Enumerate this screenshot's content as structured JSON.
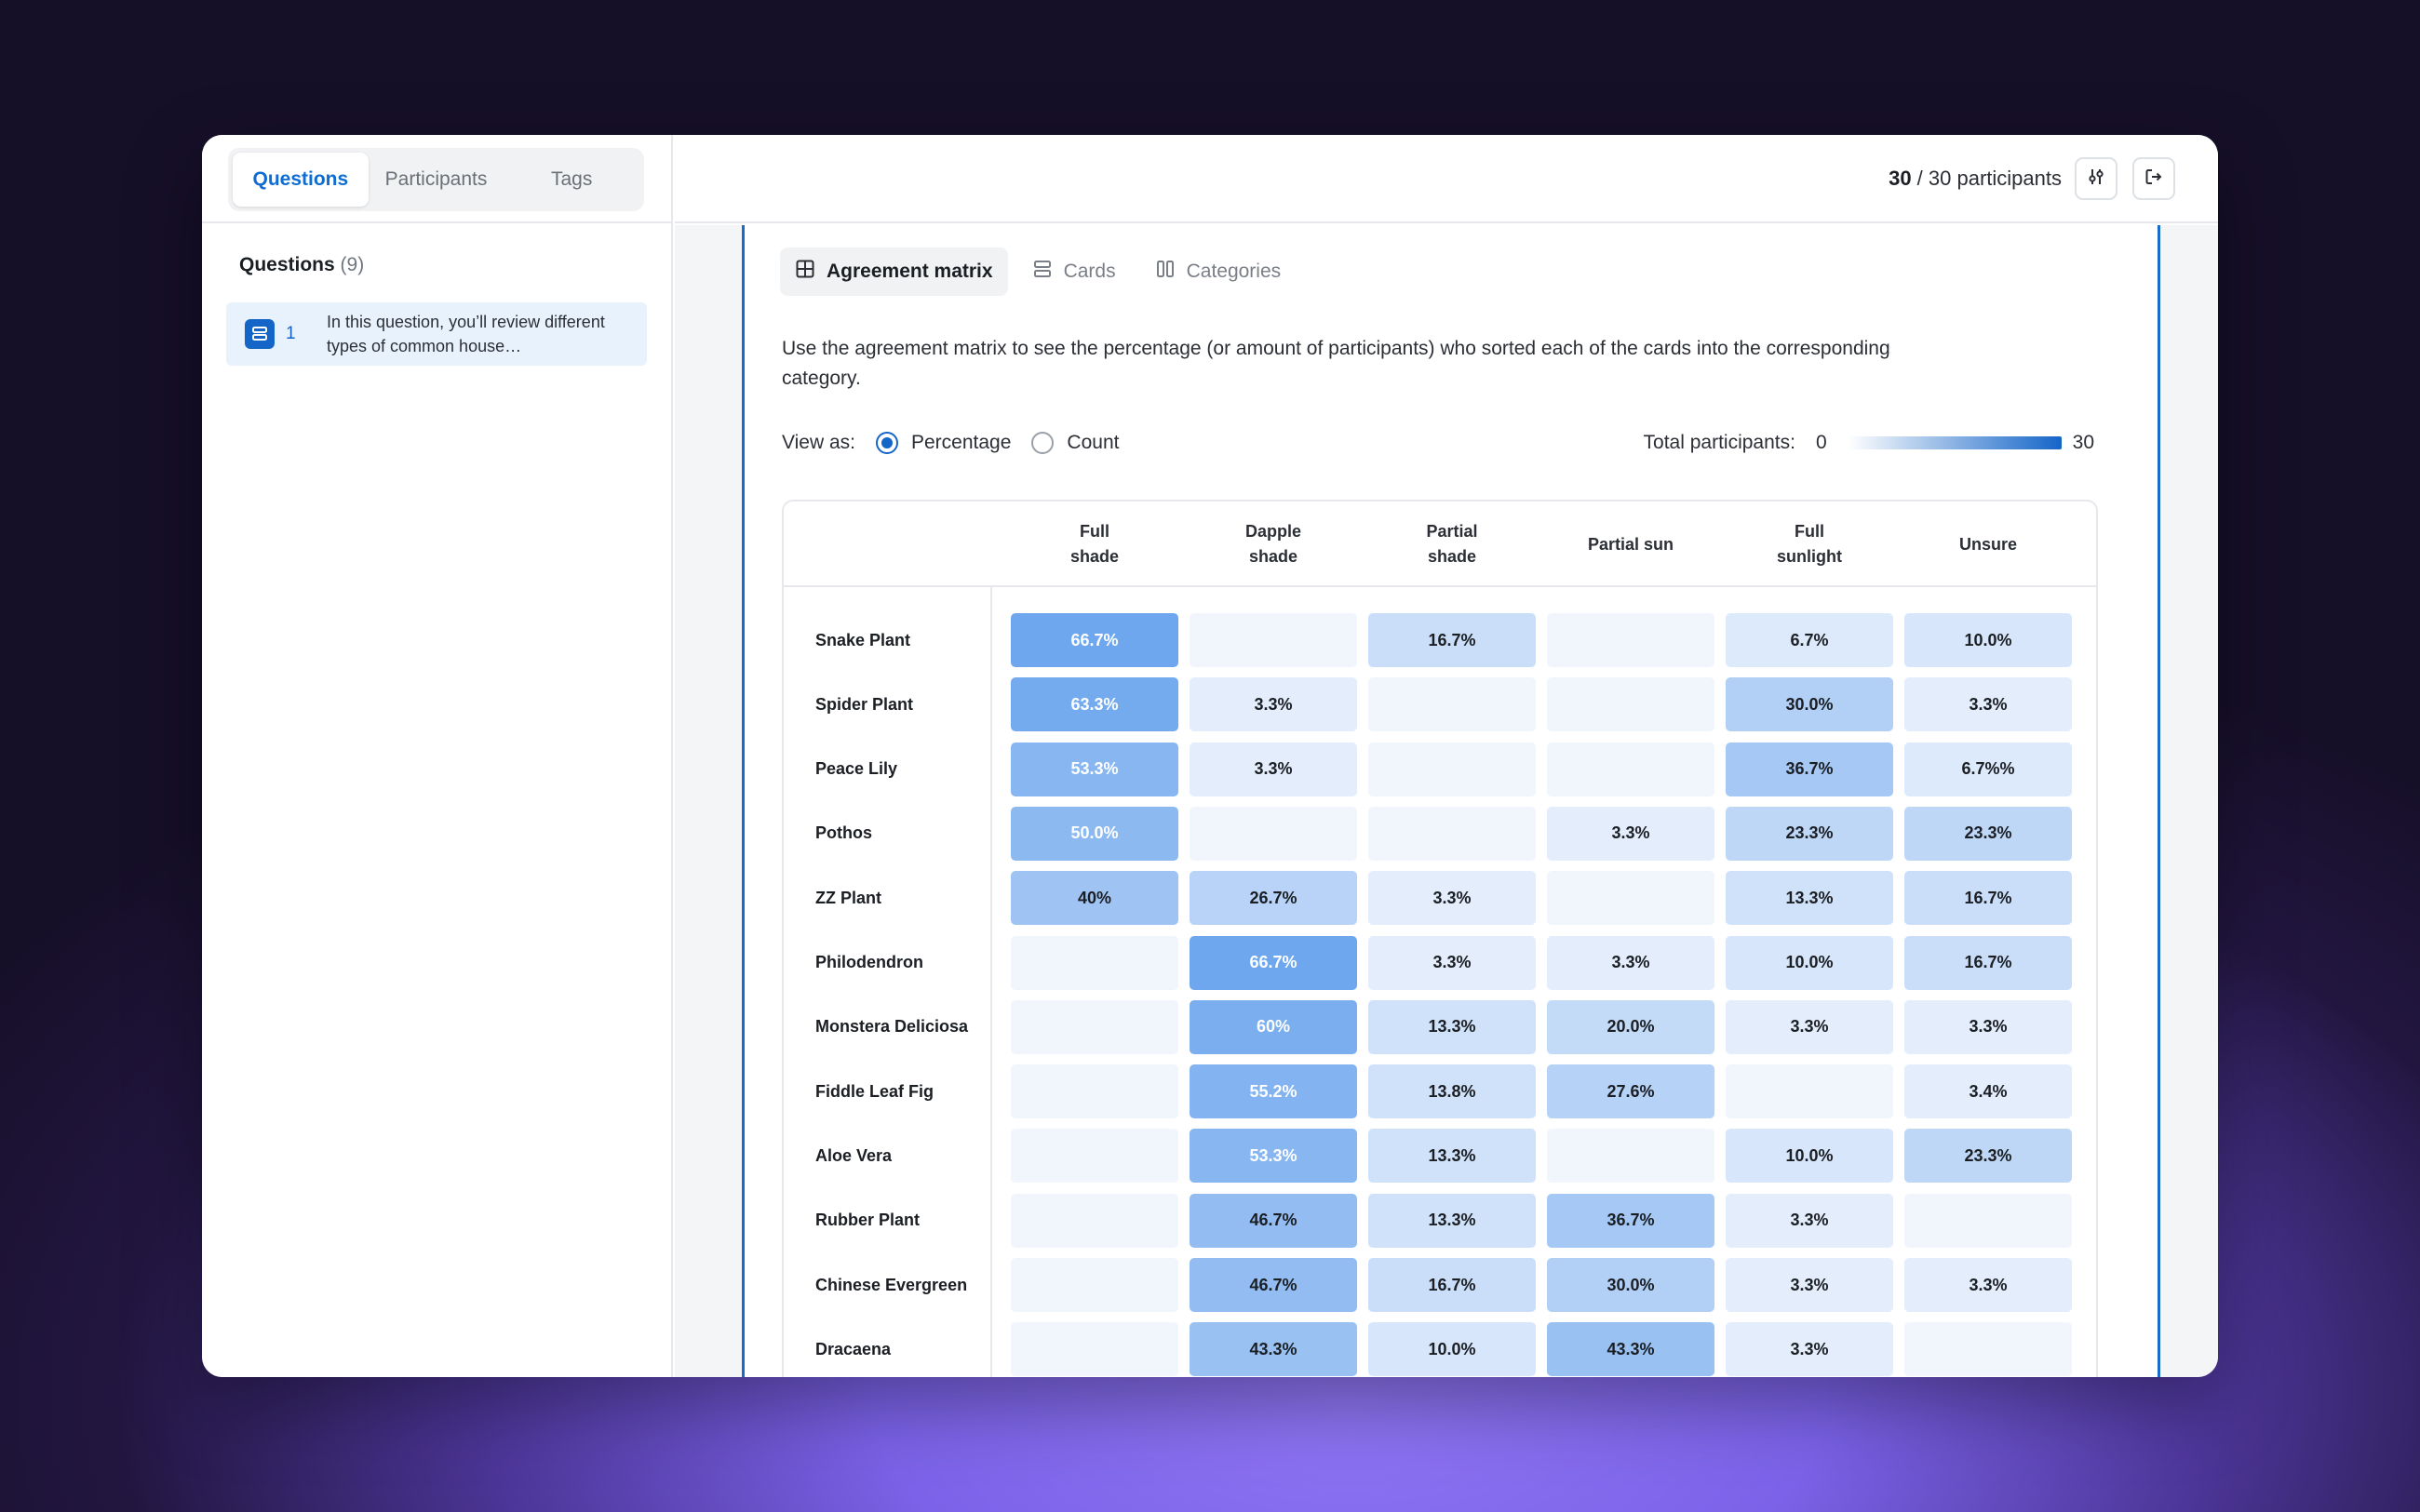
{
  "sidebar": {
    "tabs": [
      "Questions",
      "Participants",
      "Tags"
    ],
    "heading": "Questions",
    "heading_count": "(9)",
    "question": {
      "number": "1",
      "text": "In this question, you’ll review different types of common house…",
      "icon": "card-sort-icon"
    }
  },
  "header": {
    "participants_bold": "30",
    "participants_rest": " / 30 participants",
    "filter_icon": "sliders-icon",
    "exit_icon": "exit-icon"
  },
  "view_tabs": [
    {
      "label": "Agreement matrix",
      "icon": "grid-icon",
      "active": true
    },
    {
      "label": "Cards",
      "icon": "cards-icon",
      "active": false
    },
    {
      "label": "Categories",
      "icon": "columns-icon",
      "active": false
    }
  ],
  "description": "Use the agreement matrix to see the percentage (or amount of participants) who sorted each of the cards into the corresponding category.",
  "view_as": {
    "label": "View as:",
    "options": [
      "Percentage",
      "Count"
    ],
    "selected": "Percentage"
  },
  "total": {
    "label": "Total participants:",
    "min": "0",
    "max": "30",
    "accent": "#1565c8"
  },
  "chart_data": {
    "type": "heatmap",
    "columns": [
      "Full shade",
      "Dapple shade",
      "Partial shade",
      "Partial sun",
      "Full sunlight",
      "Unsure"
    ],
    "rows": [
      {
        "label": "Snake Plant",
        "cells": [
          "66.7%",
          "",
          "16.7%",
          "",
          "6.7%",
          "10.0%"
        ],
        "values": [
          66.7,
          0,
          16.7,
          0,
          6.7,
          10.0
        ]
      },
      {
        "label": "Spider Plant",
        "cells": [
          "63.3%",
          "3.3%",
          "",
          "",
          "30.0%",
          "3.3%"
        ],
        "values": [
          63.3,
          3.3,
          0,
          0,
          30.0,
          3.3
        ]
      },
      {
        "label": "Peace Lily",
        "cells": [
          "53.3%",
          "3.3%",
          "",
          "",
          "36.7%",
          "6.7%%"
        ],
        "values": [
          53.3,
          3.3,
          0,
          0,
          36.7,
          6.7
        ]
      },
      {
        "label": "Pothos",
        "cells": [
          "50.0%",
          "",
          "",
          "3.3%",
          "23.3%",
          "23.3%"
        ],
        "values": [
          50.0,
          0,
          0,
          3.3,
          23.3,
          23.3
        ]
      },
      {
        "label": "ZZ Plant",
        "cells": [
          "40%",
          "26.7%",
          "3.3%",
          "",
          "13.3%",
          "16.7%"
        ],
        "values": [
          40,
          26.7,
          3.3,
          0,
          13.3,
          16.7
        ]
      },
      {
        "label": "Philodendron",
        "cells": [
          "",
          "66.7%",
          "3.3%",
          "3.3%",
          "10.0%",
          "16.7%"
        ],
        "values": [
          0,
          66.7,
          3.3,
          3.3,
          10.0,
          16.7
        ]
      },
      {
        "label": "Monstera Deliciosa",
        "cells": [
          "",
          "60%",
          "13.3%",
          "20.0%",
          "3.3%",
          "3.3%"
        ],
        "values": [
          0,
          60,
          13.3,
          20.0,
          3.3,
          3.3
        ]
      },
      {
        "label": "Fiddle Leaf Fig",
        "cells": [
          "",
          "55.2%",
          "13.8%",
          "27.6%",
          "",
          "3.4%"
        ],
        "values": [
          0,
          55.2,
          13.8,
          27.6,
          0,
          3.4
        ]
      },
      {
        "label": "Aloe Vera",
        "cells": [
          "",
          "53.3%",
          "13.3%",
          "",
          "10.0%",
          "23.3%"
        ],
        "values": [
          0,
          53.3,
          13.3,
          0,
          10.0,
          23.3
        ]
      },
      {
        "label": "Rubber Plant",
        "cells": [
          "",
          "46.7%",
          "13.3%",
          "36.7%",
          "3.3%",
          ""
        ],
        "values": [
          0,
          46.7,
          13.3,
          36.7,
          3.3,
          0
        ]
      },
      {
        "label": "Chinese Evergreen",
        "cells": [
          "",
          "46.7%",
          "16.7%",
          "30.0%",
          "3.3%",
          "3.3%"
        ],
        "values": [
          0,
          46.7,
          16.7,
          30.0,
          3.3,
          3.3
        ]
      },
      {
        "label": "Dracaena",
        "cells": [
          "",
          "43.3%",
          "10.0%",
          "43.3%",
          "3.3%",
          ""
        ],
        "values": [
          0,
          43.3,
          10.0,
          43.3,
          3.3,
          0
        ]
      }
    ]
  }
}
